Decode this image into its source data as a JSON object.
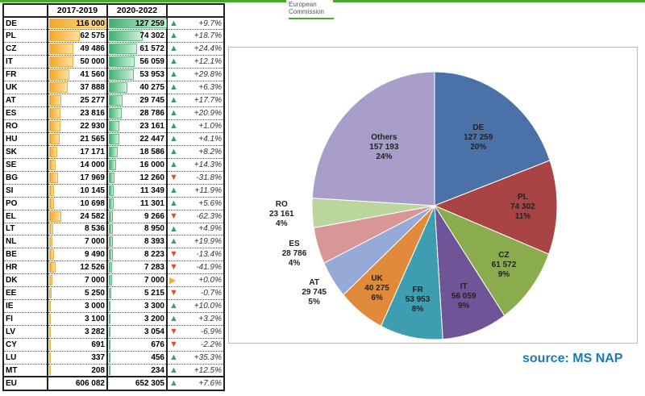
{
  "header": {
    "logo_line1": "European",
    "logo_line2": "Commission",
    "col1": "2017-2019",
    "col2": "2020-2022"
  },
  "rows": [
    [
      "DE",
      "116 000",
      "127 259",
      "+9.7%",
      116000,
      127259,
      "up"
    ],
    [
      "PL",
      "62 575",
      "74 302",
      "+18.7%",
      62575,
      74302,
      "up"
    ],
    [
      "CZ",
      "49 486",
      "61 572",
      "+24.4%",
      49486,
      61572,
      "up"
    ],
    [
      "IT",
      "50 000",
      "56 059",
      "+12.1%",
      50000,
      56059,
      "up"
    ],
    [
      "FR",
      "41 560",
      "53 953",
      "+29.8%",
      41560,
      53953,
      "up"
    ],
    [
      "UK",
      "37 888",
      "40 275",
      "+6.3%",
      37888,
      40275,
      "up"
    ],
    [
      "AT",
      "25 277",
      "29 745",
      "+17.7%",
      25277,
      29745,
      "up"
    ],
    [
      "ES",
      "23 816",
      "28 786",
      "+20.9%",
      23816,
      28786,
      "up"
    ],
    [
      "RO",
      "22 930",
      "23 161",
      "+1.0%",
      22930,
      23161,
      "up"
    ],
    [
      "HU",
      "21 565",
      "22 447",
      "+4.1%",
      21565,
      22447,
      "up"
    ],
    [
      "SK",
      "17 171",
      "18 586",
      "+8.2%",
      17171,
      18586,
      "up"
    ],
    [
      "SE",
      "14 000",
      "16 000",
      "+14.3%",
      14000,
      16000,
      "up"
    ],
    [
      "BG",
      "17 969",
      "12 260",
      "-31.8%",
      17969,
      12260,
      "down"
    ],
    [
      "SI",
      "10 145",
      "11 349",
      "+11.9%",
      10145,
      11349,
      "up"
    ],
    [
      "PO",
      "10 698",
      "11 301",
      "+5.6%",
      10698,
      11301,
      "up"
    ],
    [
      "EL",
      "24 582",
      "9 266",
      "-62.3%",
      24582,
      9266,
      "down"
    ],
    [
      "LT",
      "8 536",
      "8 950",
      "+4.9%",
      8536,
      8950,
      "up"
    ],
    [
      "NL",
      "7 000",
      "8 393",
      "+19.9%",
      7000,
      8393,
      "up"
    ],
    [
      "BE",
      "9 490",
      "8 223",
      "-13.4%",
      9490,
      8223,
      "down"
    ],
    [
      "HR",
      "12 526",
      "7 283",
      "-41.9%",
      12526,
      7283,
      "down"
    ],
    [
      "DK",
      "7 000",
      "7 000",
      "+0.0%",
      7000,
      7000,
      "flat"
    ],
    [
      "EE",
      "5 250",
      "5 215",
      "-0.7%",
      5250,
      5215,
      "down"
    ],
    [
      "IE",
      "3 000",
      "3 300",
      "+10.0%",
      3000,
      3300,
      "up"
    ],
    [
      "FI",
      "3 100",
      "3 200",
      "+3.2%",
      3100,
      3200,
      "up"
    ],
    [
      "LV",
      "3 282",
      "3 054",
      "-6.9%",
      3282,
      3054,
      "down"
    ],
    [
      "CY",
      "691",
      "676",
      "-2.2%",
      691,
      676,
      "down"
    ],
    [
      "LU",
      "337",
      "456",
      "+35.3%",
      337,
      456,
      "up"
    ],
    [
      "MT",
      "208",
      "234",
      "+12.5%",
      208,
      234,
      "up"
    ]
  ],
  "total": [
    "EU",
    "606 082",
    "652 305",
    "+7.6%",
    "up"
  ],
  "chart_data": {
    "type": "pie",
    "title": "",
    "slices": [
      {
        "label": "DE",
        "value": 127259,
        "value_text": "127 259",
        "pct": "20%",
        "color": "#4a72a8"
      },
      {
        "label": "PL",
        "value": 74302,
        "value_text": "74 302",
        "pct": "11%",
        "color": "#a84444"
      },
      {
        "label": "CZ",
        "value": 61572,
        "value_text": "61 572",
        "pct": "9%",
        "color": "#8aac4c"
      },
      {
        "label": "IT",
        "value": 56059,
        "value_text": "56 059",
        "pct": "9%",
        "color": "#6f5597"
      },
      {
        "label": "FR",
        "value": 53953,
        "value_text": "53 953",
        "pct": "8%",
        "color": "#3f9db2"
      },
      {
        "label": "UK",
        "value": 40275,
        "value_text": "40 275",
        "pct": "6%",
        "color": "#e08b3c"
      },
      {
        "label": "AT",
        "value": 29745,
        "value_text": "29 745",
        "pct": "5%",
        "color": "#95aad6"
      },
      {
        "label": "ES",
        "value": 28786,
        "value_text": "28 786",
        "pct": "4%",
        "color": "#d99696"
      },
      {
        "label": "RO",
        "value": 23161,
        "value_text": "23 161",
        "pct": "4%",
        "color": "#bad69c"
      },
      {
        "label": "Others",
        "value": 157193,
        "value_text": "157 193",
        "pct": "24%",
        "color": "#a99dc9"
      }
    ]
  },
  "source": "source: MS NAP",
  "colors": {
    "up": "#3a9a78",
    "down": "#d9542a",
    "flat": "#f0b040"
  }
}
